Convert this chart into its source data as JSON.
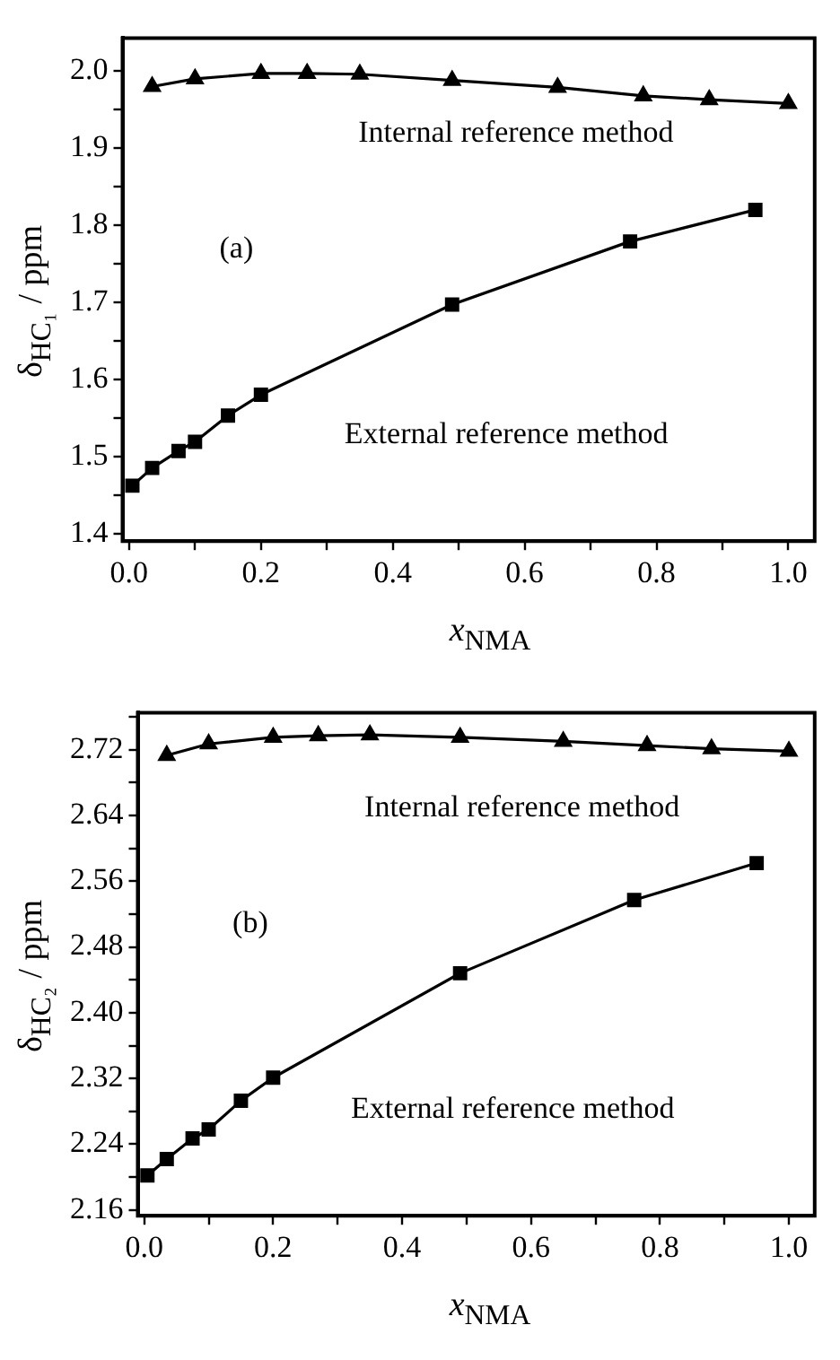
{
  "chart_data": [
    {
      "type": "line",
      "xlabel": "x$_{NMA}$",
      "ylabel": "δ$_{HC₁}$ / ppm",
      "xlim": [
        -0.01,
        1.04
      ],
      "ylim": [
        1.39,
        2.043
      ],
      "xticks": [
        {
          "value": 0,
          "label": "0.0"
        },
        {
          "value": 0.1,
          "label": null
        },
        {
          "value": 0.2,
          "label": "0.2"
        },
        {
          "value": 0.3,
          "label": null
        },
        {
          "value": 0.4,
          "label": "0.4"
        },
        {
          "value": 0.5,
          "label": null
        },
        {
          "value": 0.6,
          "label": "0.6"
        },
        {
          "value": 0.7,
          "label": null
        },
        {
          "value": 0.8,
          "label": "0.8"
        },
        {
          "value": 0.9,
          "label": null
        },
        {
          "value": 1,
          "label": "1.0"
        }
      ],
      "yticks": [
        1.4,
        {
          "value": 1.45,
          "label": null
        },
        1.5,
        {
          "value": 1.55,
          "label": null
        },
        1.6,
        {
          "value": 1.65,
          "label": null
        },
        1.7,
        {
          "value": 1.75,
          "label": null
        },
        1.8,
        {
          "value": 1.85,
          "label": null
        },
        1.9,
        {
          "value": 1.95,
          "label": null
        },
        {
          "value": 2,
          "label": "2.0"
        }
      ],
      "grid": false,
      "legend": false,
      "line_style": "solid",
      "annotations": [
        "Internal reference method",
        "(a)",
        "External reference method"
      ],
      "series": [
        {
          "color": "#000000",
          "marker": "triangle",
          "x": [
            0.035,
            0.1,
            0.2,
            0.27,
            0.35,
            0.49,
            0.65,
            0.78,
            0.88,
            1.0
          ],
          "values": [
            1.98,
            1.99,
            1.997,
            1.997,
            1.996,
            1.988,
            1.979,
            1.968,
            1.963,
            1.958
          ]
        },
        {
          "color": "#000000",
          "marker": "square",
          "x": [
            0.005,
            0.035,
            0.075,
            0.1,
            0.15,
            0.2,
            0.49,
            0.76,
            0.95
          ],
          "values": [
            1.462,
            1.485,
            1.507,
            1.519,
            1.553,
            1.58,
            1.697,
            1.779,
            1.82
          ]
        }
      ]
    },
    {
      "type": "line",
      "xlabel": "x$_{NMA}$",
      "ylabel": "δ$_{HC₂}$ / ppm",
      "xlim": [
        -0.01,
        1.04
      ],
      "ylim": [
        2.153,
        2.765
      ],
      "xticks": [
        {
          "value": 0,
          "label": "0.0"
        },
        {
          "value": 0.1,
          "label": null
        },
        {
          "value": 0.2,
          "label": "0.2"
        },
        {
          "value": 0.3,
          "label": null
        },
        {
          "value": 0.4,
          "label": "0.4"
        },
        {
          "value": 0.5,
          "label": null
        },
        {
          "value": 0.6,
          "label": "0.6"
        },
        {
          "value": 0.7,
          "label": null
        },
        {
          "value": 0.8,
          "label": "0.8"
        },
        {
          "value": 0.9,
          "label": null
        },
        {
          "value": 1,
          "label": "1.0"
        }
      ],
      "yticks": [
        {
          "value": 2.16,
          "label": "2.16"
        },
        {
          "value": 2.2,
          "label": null
        },
        {
          "value": 2.24,
          "label": "2.24"
        },
        {
          "value": 2.28,
          "label": null
        },
        {
          "value": 2.32,
          "label": "2.32"
        },
        {
          "value": 2.36,
          "label": null
        },
        {
          "value": 2.4,
          "label": "2.40"
        },
        {
          "value": 2.44,
          "label": null
        },
        {
          "value": 2.48,
          "label": "2.48"
        },
        {
          "value": 2.52,
          "label": null
        },
        {
          "value": 2.56,
          "label": "2.56"
        },
        {
          "value": 2.6,
          "label": null
        },
        {
          "value": 2.64,
          "label": "2.64"
        },
        {
          "value": 2.68,
          "label": null
        },
        {
          "value": 2.72,
          "label": "2.72"
        },
        {
          "value": 2.76,
          "label": null
        }
      ],
      "grid": false,
      "legend": false,
      "line_style": "solid",
      "annotations": [
        "Internal reference method",
        "(b)",
        "External reference method"
      ],
      "series": [
        {
          "color": "#000000",
          "marker": "triangle",
          "x": [
            0.035,
            0.1,
            0.2,
            0.27,
            0.35,
            0.49,
            0.65,
            0.78,
            0.88,
            1.0
          ],
          "values": [
            2.713,
            2.727,
            2.735,
            2.737,
            2.738,
            2.735,
            2.73,
            2.725,
            2.721,
            2.718
          ]
        },
        {
          "color": "#000000",
          "marker": "square",
          "x": [
            0.005,
            0.035,
            0.075,
            0.1,
            0.15,
            0.2,
            0.49,
            0.76,
            0.95
          ],
          "values": [
            2.202,
            2.222,
            2.247,
            2.258,
            2.293,
            2.321,
            2.448,
            2.537,
            2.582
          ]
        }
      ]
    }
  ]
}
